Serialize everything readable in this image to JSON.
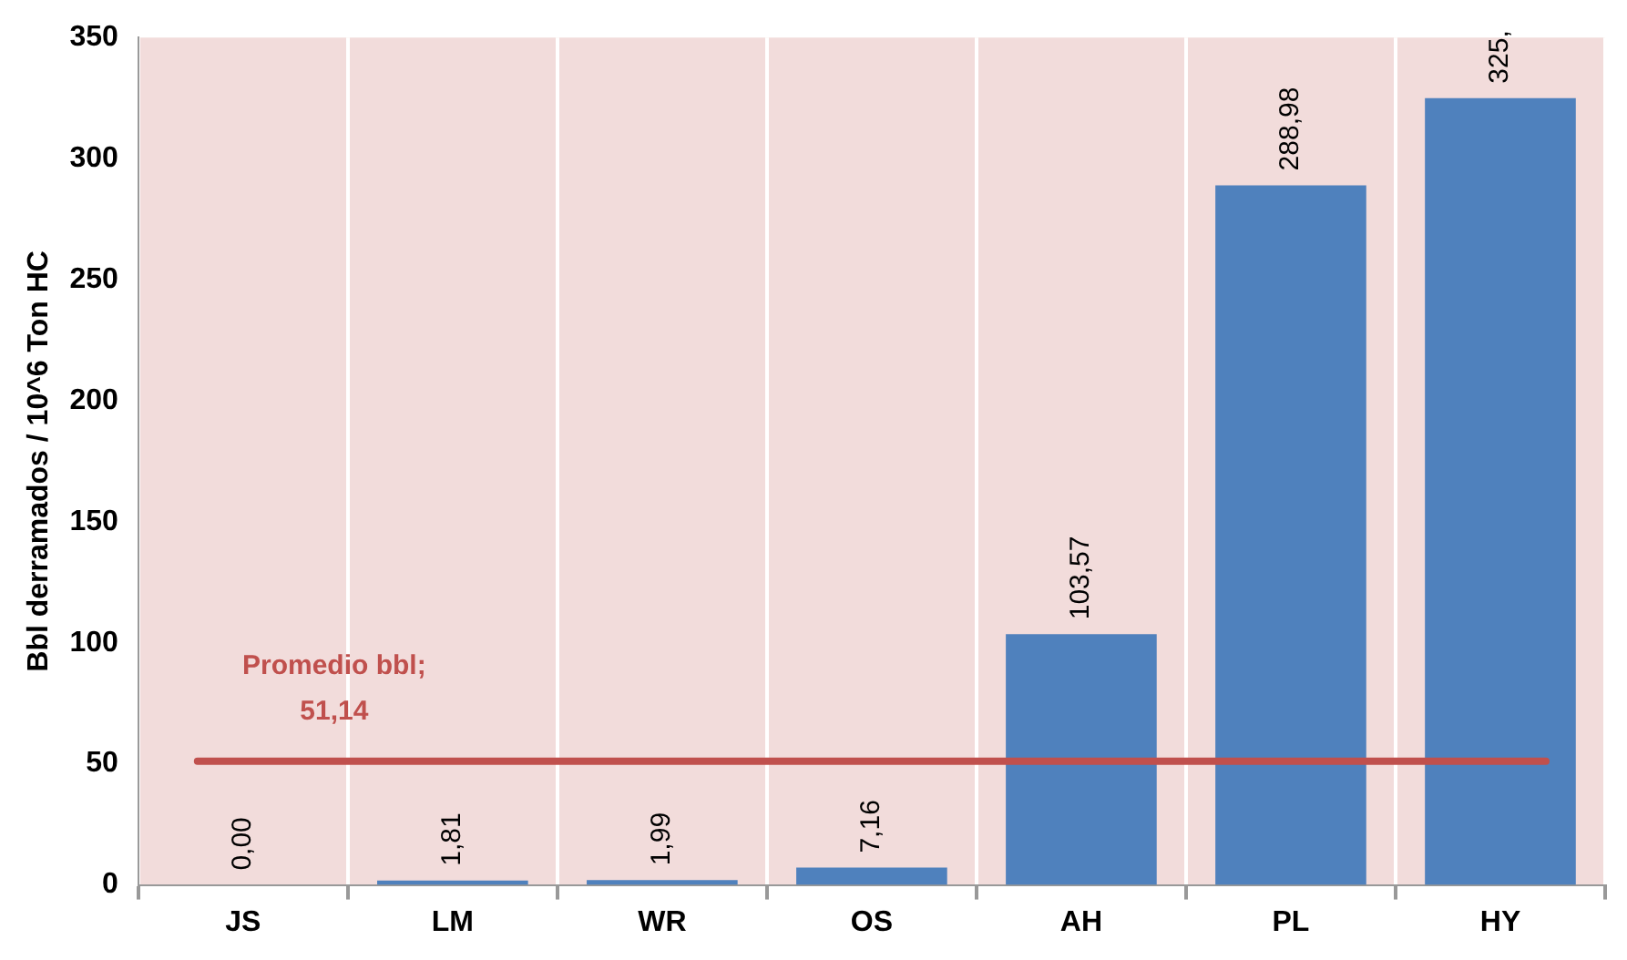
{
  "chart_data": {
    "type": "bar",
    "ylabel": "Bbl derramados / 10^6 Ton HC",
    "categories": [
      "JS",
      "LM",
      "WR",
      "OS",
      "AH",
      "PL",
      "HY"
    ],
    "values": [
      0,
      1.81,
      1.99,
      7.16,
      103.57,
      288.98,
      325
    ],
    "value_labels": [
      "0,00",
      "1,81",
      "1,99",
      "7,16",
      "103,57",
      "288,98",
      "325,"
    ],
    "color": "#4f81bd",
    "ylim": [
      0,
      350
    ],
    "yticks": [
      0,
      50,
      100,
      150,
      200,
      250,
      300,
      350
    ],
    "grid": "x",
    "legend": false,
    "ref_lines": [
      {
        "axis": "y",
        "value": 51.14,
        "label": "Promedio bbl; 51,14",
        "color": "#c0504d"
      }
    ]
  }
}
